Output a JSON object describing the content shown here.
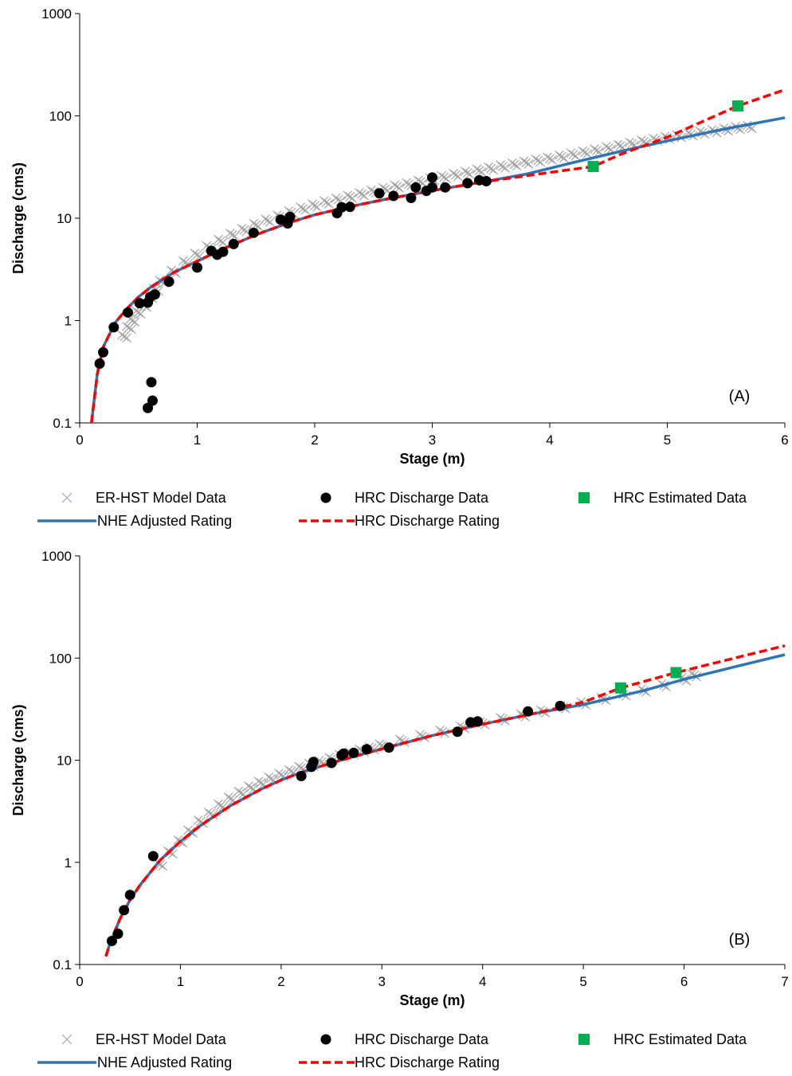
{
  "chart_data": [
    {
      "type": "scatter",
      "panel_label": "(A)",
      "xlabel": "Stage (m)",
      "ylabel": "Discharge (cms)",
      "xlim": [
        0,
        6
      ],
      "ylim": [
        0.1,
        1000
      ],
      "y_scale": "log",
      "x_ticks": [
        "0",
        "1",
        "2",
        "3",
        "4",
        "5",
        "6"
      ],
      "y_ticks": [
        "0.1",
        "1",
        "10",
        "100",
        "1000"
      ],
      "grid": false,
      "legend_position": "bottom",
      "legend": {
        "model": "ER-HST Model Data",
        "discharge": "HRC Discharge Data",
        "estimated": "HRC Estimated Data",
        "nhe": "NHE Adjusted Rating",
        "hrc": "HRC Discharge Rating"
      },
      "colors": {
        "model": "#a6a6a6",
        "discharge": "#000000",
        "estimated": "#00b050",
        "nhe": "#2e75b6",
        "hrc": "#ff0000"
      },
      "series": [
        {
          "name": "ER-HST Model Data",
          "kind": "cross",
          "x": [
            0.38,
            0.42,
            0.45,
            0.5,
            0.55,
            0.6,
            0.65,
            0.7,
            0.8,
            0.9,
            1.0,
            1.1,
            1.2,
            1.3,
            1.4,
            1.5,
            1.6,
            1.7,
            1.8,
            1.9,
            2.0,
            2.1,
            2.2,
            2.3,
            2.4,
            2.5,
            2.6,
            2.7,
            2.8,
            2.9,
            3.0,
            3.1,
            3.2,
            3.3,
            3.4,
            3.5,
            3.6,
            3.7,
            3.8,
            3.9,
            4.0,
            4.1,
            4.2,
            4.3,
            4.4,
            4.5,
            4.6,
            4.7,
            4.8,
            4.9,
            5.0,
            5.1,
            5.2,
            5.3,
            5.4,
            5.5,
            5.6,
            5.7
          ],
          "y": [
            0.7,
            0.85,
            1.0,
            1.2,
            1.4,
            1.7,
            2.0,
            2.4,
            3.0,
            3.7,
            4.4,
            5.2,
            6.0,
            6.9,
            7.7,
            8.6,
            9.5,
            10.4,
            11.4,
            12.4,
            13.3,
            14.3,
            15.2,
            16.2,
            17.2,
            18.2,
            19.3,
            20.4,
            21.5,
            22.7,
            24.0,
            25.2,
            26.5,
            27.8,
            29.2,
            30.6,
            32.0,
            33.5,
            35.0,
            36.6,
            38.3,
            40.0,
            42.0,
            44.0,
            46.0,
            48.5,
            51.0,
            53.5,
            56.0,
            58.5,
            61.0,
            63.5,
            66.0,
            68.5,
            71.0,
            73.5,
            76.0,
            78.0
          ]
        },
        {
          "name": "HRC Discharge Data",
          "kind": "dot",
          "x": [
            0.17,
            0.2,
            0.29,
            0.41,
            0.51,
            0.58,
            0.6,
            0.61,
            0.62,
            0.58,
            0.64,
            0.76,
            1.0,
            1.12,
            1.17,
            1.22,
            1.31,
            1.48,
            1.71,
            1.77,
            1.79,
            2.19,
            2.23,
            2.3,
            2.55,
            2.67,
            2.82,
            2.86,
            2.95,
            3.0,
            3.0,
            3.11,
            3.3,
            3.4,
            3.46
          ],
          "y": [
            0.38,
            0.49,
            0.86,
            1.2,
            1.48,
            1.5,
            1.7,
            0.25,
            0.165,
            0.14,
            1.8,
            2.4,
            3.3,
            4.8,
            4.4,
            4.7,
            5.6,
            7.2,
            9.7,
            8.9,
            10.3,
            11.2,
            12.8,
            12.9,
            17.5,
            16.5,
            15.8,
            20.0,
            18.5,
            20.0,
            25.0,
            20.0,
            22.0,
            23.5,
            23.0
          ]
        },
        {
          "name": "HRC Estimated Data",
          "kind": "square",
          "x": [
            4.37,
            5.6
          ],
          "y": [
            32,
            125
          ]
        },
        {
          "name": "NHE Adjusted Rating",
          "kind": "line",
          "x": [
            0.1,
            0.15,
            0.2,
            0.3,
            0.4,
            0.5,
            0.6,
            0.7,
            0.8,
            1.0,
            1.2,
            1.5,
            1.8,
            2.0,
            2.3,
            2.6,
            3.0,
            3.4,
            3.8,
            4.2,
            4.6,
            5.0,
            5.5,
            6.0
          ],
          "y": [
            0.1,
            0.3,
            0.55,
            0.95,
            1.3,
            1.7,
            2.1,
            2.5,
            2.95,
            3.8,
            4.9,
            6.9,
            9.2,
            10.8,
            13.0,
            15.3,
            18.6,
            22.3,
            27.0,
            35.0,
            45.0,
            57.0,
            75.0,
            96.0
          ]
        },
        {
          "name": "HRC Discharge Rating",
          "kind": "line",
          "x": [
            0.1,
            0.15,
            0.2,
            0.3,
            0.4,
            0.5,
            0.6,
            0.7,
            0.8,
            1.0,
            1.2,
            1.5,
            1.8,
            2.0,
            2.3,
            2.6,
            3.0,
            3.4,
            3.8,
            4.0,
            4.37,
            4.6,
            5.0,
            5.6,
            6.0
          ],
          "y": [
            0.1,
            0.3,
            0.55,
            0.95,
            1.3,
            1.7,
            2.1,
            2.5,
            2.95,
            3.8,
            4.9,
            6.9,
            9.2,
            10.8,
            13.0,
            15.3,
            18.6,
            22.3,
            26.0,
            28.0,
            32.0,
            42.0,
            62.0,
            125.0,
            180.0
          ]
        }
      ]
    },
    {
      "type": "scatter",
      "panel_label": "(B)",
      "xlabel": "Stage (m)",
      "ylabel": "Discharge (cms)",
      "xlim": [
        0,
        7
      ],
      "ylim": [
        0.1,
        1000
      ],
      "y_scale": "log",
      "x_ticks": [
        "0",
        "1",
        "2",
        "3",
        "4",
        "5",
        "6",
        "7"
      ],
      "y_ticks": [
        "0.1",
        "1",
        "10",
        "100",
        "1000"
      ],
      "grid": false,
      "legend_position": "bottom",
      "legend": {
        "model": "ER-HST Model Data",
        "discharge": "HRC Discharge Data",
        "estimated": "HRC Estimated Data",
        "nhe": "NHE Adjusted Rating",
        "hrc": "HRC Discharge Rating"
      },
      "colors": {
        "model": "#a6a6a6",
        "discharge": "#000000",
        "estimated": "#00b050",
        "nhe": "#2e75b6",
        "hrc": "#ff0000"
      },
      "series": [
        {
          "name": "ER-HST Model Data",
          "kind": "cross",
          "x": [
            0.8,
            0.9,
            1.0,
            1.1,
            1.2,
            1.3,
            1.4,
            1.5,
            1.6,
            1.7,
            1.8,
            1.9,
            2.0,
            2.1,
            2.2,
            2.3,
            2.4,
            2.5,
            2.6,
            2.7,
            2.8,
            2.9,
            3.0,
            3.2,
            3.4,
            3.6,
            3.8,
            4.0,
            4.2,
            4.4,
            4.6,
            4.8,
            5.0,
            5.2,
            5.4,
            5.6,
            5.8,
            6.0,
            6.1
          ],
          "y": [
            0.95,
            1.25,
            1.6,
            2.0,
            2.5,
            3.0,
            3.6,
            4.2,
            4.8,
            5.4,
            6.0,
            6.6,
            7.2,
            7.8,
            8.4,
            9.0,
            9.6,
            10.3,
            11.0,
            11.7,
            12.4,
            13.1,
            13.9,
            15.5,
            17.2,
            19.0,
            21.0,
            23.0,
            25.2,
            27.5,
            30.0,
            33.0,
            36.0,
            40.0,
            44.0,
            48.0,
            54.0,
            62.0,
            68.0
          ]
        },
        {
          "name": "HRC Discharge Data",
          "kind": "dot",
          "x": [
            0.32,
            0.38,
            0.44,
            0.5,
            0.73,
            2.2,
            2.3,
            2.32,
            2.5,
            2.6,
            2.62,
            2.72,
            2.85,
            3.07,
            3.75,
            3.88,
            3.95,
            4.45,
            4.77
          ],
          "y": [
            0.17,
            0.2,
            0.34,
            0.48,
            1.15,
            7.0,
            8.6,
            9.6,
            9.4,
            11.2,
            11.6,
            11.8,
            12.8,
            13.3,
            19.0,
            23.5,
            24.0,
            30.0,
            34.0
          ]
        },
        {
          "name": "HRC Estimated Data",
          "kind": "square",
          "x": [
            5.37,
            5.92
          ],
          "y": [
            51,
            72
          ]
        },
        {
          "name": "NHE Adjusted Rating",
          "kind": "line",
          "x": [
            0.26,
            0.3,
            0.4,
            0.5,
            0.6,
            0.8,
            1.0,
            1.2,
            1.5,
            1.8,
            2.0,
            2.2,
            2.5,
            2.8,
            3.0,
            3.5,
            4.0,
            4.5,
            5.0,
            5.3,
            5.6,
            6.0,
            6.5,
            7.0
          ],
          "y": [
            0.12,
            0.16,
            0.28,
            0.43,
            0.6,
            1.05,
            1.6,
            2.3,
            3.6,
            5.2,
            6.4,
            7.6,
            9.4,
            11.4,
            12.9,
            17.4,
            22.5,
            28.5,
            35.0,
            41.0,
            48.0,
            62.0,
            82.0,
            108.0
          ]
        },
        {
          "name": "HRC Discharge Rating",
          "kind": "line",
          "x": [
            0.26,
            0.3,
            0.4,
            0.5,
            0.6,
            0.8,
            1.0,
            1.2,
            1.5,
            1.8,
            2.0,
            2.2,
            2.5,
            2.8,
            3.0,
            3.5,
            4.0,
            4.5,
            5.0,
            5.37,
            5.92,
            6.5,
            7.0
          ],
          "y": [
            0.12,
            0.16,
            0.28,
            0.43,
            0.6,
            1.05,
            1.6,
            2.3,
            3.6,
            5.2,
            6.4,
            7.6,
            9.4,
            11.4,
            12.9,
            17.4,
            22.5,
            28.5,
            37.0,
            51.0,
            72.0,
            100.0,
            132.0
          ]
        }
      ]
    }
  ]
}
